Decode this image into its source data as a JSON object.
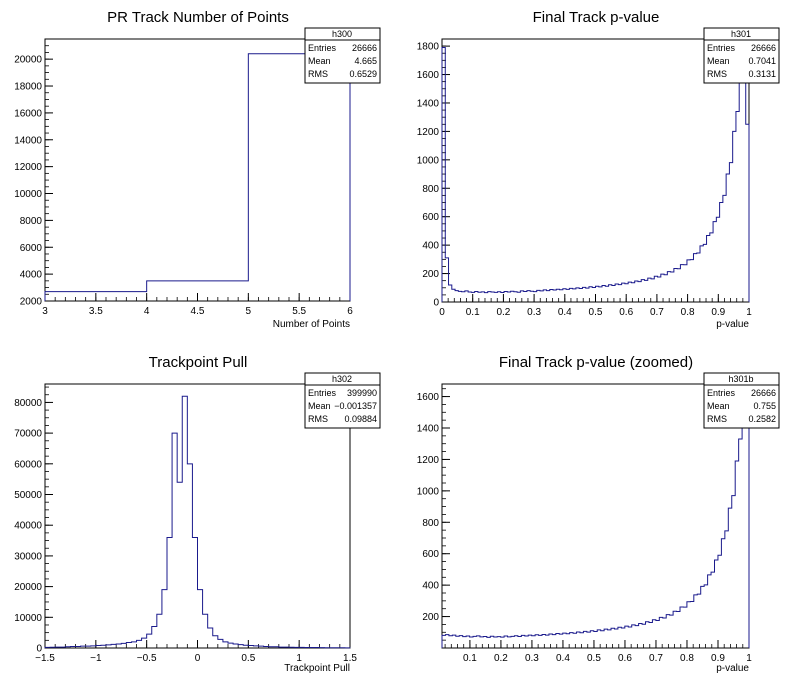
{
  "chart_data": [
    {
      "type": "histogram",
      "name": "h300",
      "title": "PR Track Number of Points",
      "xlabel": "Number of Points",
      "ylabel": "",
      "xlim": [
        3,
        6
      ],
      "ylim": [
        2000,
        21500
      ],
      "x_ticks": [
        "3",
        "3.5",
        "4",
        "4.5",
        "5",
        "5.5",
        "6"
      ],
      "y_ticks": [
        "2000",
        "4000",
        "6000",
        "8000",
        "10000",
        "12000",
        "14000",
        "16000",
        "18000",
        "20000"
      ],
      "bin_edges": [
        3,
        4,
        5,
        6
      ],
      "values": [
        2700,
        3500,
        20400
      ],
      "stats": {
        "title": "h300",
        "rows": [
          [
            "Entries",
            "26666"
          ],
          [
            "Mean",
            "4.665"
          ],
          [
            "RMS",
            "0.6529"
          ]
        ]
      }
    },
    {
      "type": "histogram",
      "name": "h301",
      "title": "Final Track p-value",
      "xlabel": "p-value",
      "ylabel": "",
      "xlim": [
        0,
        1
      ],
      "ylim": [
        0,
        1850
      ],
      "x_ticks": [
        "0",
        "0.1",
        "0.2",
        "0.3",
        "0.4",
        "0.5",
        "0.6",
        "0.7",
        "0.8",
        "0.9",
        "1"
      ],
      "y_ticks": [
        "0",
        "200",
        "400",
        "600",
        "800",
        "1000",
        "1200",
        "1400",
        "1600",
        "1800"
      ],
      "bin_edges_range": [
        0,
        1
      ],
      "values": [
        1790,
        310,
        120,
        90,
        80,
        75,
        72,
        78,
        70,
        68,
        74,
        69,
        71,
        66,
        73,
        70,
        68,
        72,
        67,
        74,
        70,
        76,
        72,
        69,
        78,
        74,
        80,
        76,
        73,
        82,
        78,
        85,
        80,
        88,
        84,
        90,
        86,
        93,
        89,
        96,
        92,
        99,
        95,
        103,
        98,
        107,
        102,
        111,
        106,
        116,
        111,
        121,
        116,
        127,
        122,
        133,
        128,
        140,
        135,
        148,
        143,
        157,
        152,
        168,
        163,
        181,
        176,
        196,
        192,
        214,
        211,
        236,
        234,
        263,
        262,
        296,
        298,
        340,
        345,
        395,
        405,
        468,
        486,
        565,
        596,
        700,
        750,
        900,
        980,
        1200,
        1340,
        1620,
        1790,
        1250
      ],
      "stats": {
        "title": "h301",
        "rows": [
          [
            "Entries",
            "26666"
          ],
          [
            "Mean",
            "0.7041"
          ],
          [
            "RMS",
            "0.3131"
          ]
        ]
      }
    },
    {
      "type": "histogram",
      "name": "h302",
      "title": "Trackpoint Pull",
      "xlabel": "Trackpoint Pull",
      "ylabel": "",
      "xlim": [
        -1.5,
        1.5
      ],
      "ylim": [
        0,
        86000
      ],
      "x_ticks": [
        "−1.5",
        "−1",
        "−0.5",
        "0",
        "0.5",
        "1",
        "1.5"
      ],
      "y_ticks": [
        "0",
        "10000",
        "20000",
        "30000",
        "40000",
        "50000",
        "60000",
        "70000",
        "80000"
      ],
      "bin_edges_range": [
        -1.5,
        1.5
      ],
      "values": [
        200,
        250,
        300,
        300,
        400,
        500,
        500,
        600,
        600,
        700,
        800,
        900,
        1000,
        1200,
        1300,
        1500,
        1800,
        2000,
        2500,
        3200,
        4500,
        7000,
        11000,
        19000,
        36000,
        70000,
        54000,
        82000,
        60000,
        36000,
        19000,
        11000,
        6500,
        4000,
        2800,
        2000,
        1600,
        1300,
        1100,
        900,
        800,
        700,
        600,
        500,
        400,
        400,
        300,
        300,
        250,
        200,
        200,
        180,
        150,
        150,
        120,
        100,
        100,
        80,
        80,
        60
      ],
      "stats": {
        "title": "h302",
        "rows": [
          [
            "Entries",
            "399990"
          ],
          [
            "Mean",
            "−0.001357"
          ],
          [
            "RMS",
            "0.09884"
          ]
        ]
      }
    },
    {
      "type": "histogram",
      "name": "h301b",
      "title": "Final Track p-value (zoomed)",
      "xlabel": "p-value",
      "ylabel": "",
      "xlim": [
        0.01,
        1
      ],
      "ylim": [
        0,
        1680
      ],
      "x_ticks": [
        "0.1",
        "0.2",
        "0.3",
        "0.4",
        "0.5",
        "0.6",
        "0.7",
        "0.8",
        "0.9",
        "1"
      ],
      "y_ticks": [
        "200",
        "400",
        "600",
        "800",
        "1000",
        "1200",
        "1400",
        "1600"
      ],
      "bin_edges_range": [
        0.01,
        1
      ],
      "values": [
        80,
        85,
        78,
        82,
        75,
        79,
        72,
        76,
        70,
        74,
        77,
        71,
        73,
        68,
        75,
        70,
        72,
        69,
        76,
        71,
        74,
        78,
        73,
        80,
        76,
        82,
        78,
        84,
        80,
        86,
        82,
        89,
        85,
        92,
        88,
        95,
        91,
        98,
        94,
        102,
        97,
        106,
        101,
        110,
        105,
        115,
        110,
        120,
        115,
        126,
        121,
        132,
        127,
        139,
        134,
        147,
        142,
        156,
        151,
        167,
        162,
        180,
        175,
        195,
        191,
        212,
        209,
        234,
        232,
        261,
        260,
        294,
        296,
        338,
        343,
        392,
        402,
        465,
        483,
        560,
        590,
        695,
        745,
        890,
        970,
        1190,
        1330,
        1600,
        1450
      ],
      "stats": {
        "title": "h301b",
        "rows": [
          [
            "Entries",
            "26666"
          ],
          [
            "Mean",
            "0.755"
          ],
          [
            "RMS",
            "0.2582"
          ]
        ]
      }
    }
  ]
}
